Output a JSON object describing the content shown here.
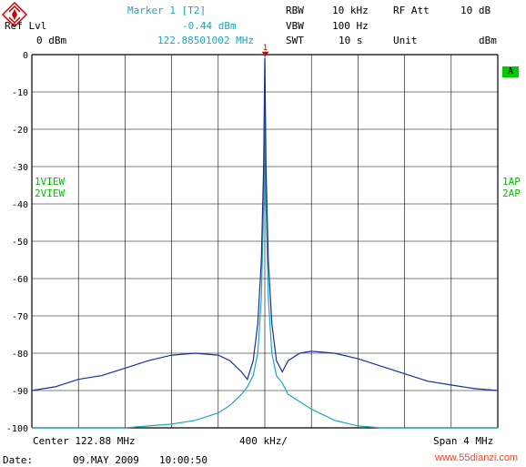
{
  "header": {
    "ref_lvl_label": "Ref Lvl",
    "ref_lvl_value": "0 dBm",
    "marker_title": "Marker 1 [T2]",
    "marker_level": "-0.44 dBm",
    "marker_freq": "122.88501002 MHz",
    "rbw_label": "RBW",
    "rbw_value": "10 kHz",
    "vbw_label": "VBW",
    "vbw_value": "100 Hz",
    "swt_label": "SWT",
    "swt_value": "10 s",
    "rf_att_label": "RF Att",
    "rf_att_value": "10 dB",
    "unit_label": "Unit",
    "unit_value": "dBm"
  },
  "side": {
    "view1": "1VIEW",
    "view2": "2VIEW",
    "ap1": "1AP",
    "ap2": "2AP",
    "badge": "A"
  },
  "marker_label": "1",
  "footer": {
    "center": "Center 122.88 MHz",
    "division": "400 kHz/",
    "span": "Span 4 MHz",
    "date_label": "Date:",
    "date_value": "09.MAY 2009",
    "time_value": "10:00:50",
    "watermark": "www.55dianzi.com"
  },
  "colors": {
    "trace1": "#1a2e9a",
    "trace2": "#1aa8b8",
    "marker": "#cc0000",
    "grid": "#000000",
    "logo": "#cc0000"
  },
  "chart_data": {
    "type": "line",
    "x_unit": "MHz",
    "xlim": [
      120.88,
      124.88
    ],
    "ylim": [
      -100,
      0
    ],
    "y_ticks": [
      0,
      -10,
      -20,
      -30,
      -40,
      -50,
      -60,
      -70,
      -80,
      -90,
      -100
    ],
    "grid": true,
    "series": [
      {
        "name": "1VIEW",
        "color": "#1a2e9a",
        "x": [
          120.88,
          121.08,
          121.28,
          121.48,
          121.68,
          121.88,
          122.08,
          122.28,
          122.48,
          122.58,
          122.68,
          122.73,
          122.78,
          122.82,
          122.85,
          122.87,
          122.88,
          122.89,
          122.91,
          122.94,
          122.98,
          123.03,
          123.08,
          123.18,
          123.28,
          123.48,
          123.68,
          123.88,
          124.08,
          124.28,
          124.48,
          124.68,
          124.88
        ],
        "y": [
          -90,
          -89,
          -87,
          -86,
          -84,
          -82,
          -80.5,
          -80,
          -80.5,
          -82,
          -85,
          -87,
          -82,
          -72,
          -55,
          -30,
          -1,
          -30,
          -55,
          -72,
          -82,
          -85,
          -82,
          -80,
          -79.5,
          -80,
          -81.5,
          -83.5,
          -85.5,
          -87.5,
          -88.5,
          -89.5,
          -90
        ]
      },
      {
        "name": "2VIEW",
        "color": "#1aa8b8",
        "x": [
          120.88,
          121.28,
          121.68,
          121.88,
          122.08,
          122.28,
          122.38,
          122.48,
          122.58,
          122.68,
          122.73,
          122.78,
          122.82,
          122.85,
          122.87,
          122.88,
          122.89,
          122.91,
          122.94,
          122.98,
          123.03,
          123.08,
          123.18,
          123.28,
          123.38,
          123.48,
          123.68,
          123.88,
          124.08,
          124.48,
          124.88
        ],
        "y": [
          -100,
          -100,
          -100,
          -99.5,
          -99,
          -98,
          -97,
          -96,
          -94,
          -91,
          -89,
          -86,
          -80,
          -65,
          -40,
          -1,
          -40,
          -65,
          -80,
          -86,
          -88,
          -91,
          -93,
          -95,
          -96.5,
          -98,
          -99.5,
          -100,
          -100,
          -100,
          -100
        ]
      }
    ],
    "marker": {
      "x": 122.88501002,
      "y": -0.44,
      "label": "1"
    }
  }
}
